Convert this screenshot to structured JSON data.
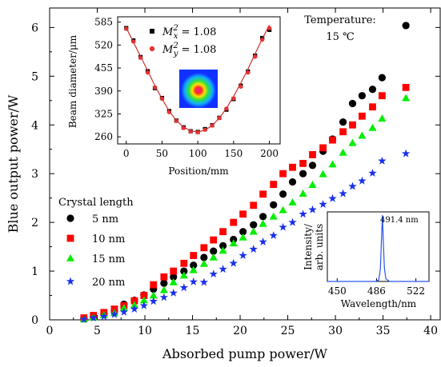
{
  "chart_data": [
    {
      "id": "main",
      "type": "scatter",
      "xlabel": "Absorbed pump power/W",
      "ylabel": "Blue output power/W",
      "xlim": [
        0,
        41
      ],
      "ylim": [
        0,
        6.4
      ],
      "xticks": [
        "0",
        "5",
        "10",
        "15",
        "20",
        "25",
        "30",
        "35",
        "40"
      ],
      "yticks": [
        "0",
        "1",
        "2",
        "3",
        "4",
        "5",
        "6"
      ],
      "legend_title": "Crystal length",
      "legend_position": "left",
      "annotation": {
        "line1": "Temperature:",
        "line2": "15 ℃"
      },
      "series": [
        {
          "name": "5 nm",
          "marker": "circle",
          "color": "#000000",
          "x": [
            3.6,
            4.6,
            5.7,
            6.8,
            7.8,
            8.9,
            9.9,
            10.9,
            12.0,
            13.0,
            14.1,
            15.1,
            16.2,
            17.2,
            18.2,
            19.3,
            20.3,
            21.4,
            22.4,
            23.5,
            24.5,
            25.5,
            26.6,
            27.6,
            28.7,
            29.7,
            30.8,
            31.8,
            32.8,
            33.9,
            34.9,
            37.4
          ],
          "y": [
            0.02,
            0.06,
            0.12,
            0.19,
            0.32,
            0.4,
            0.51,
            0.63,
            0.75,
            0.88,
            1.0,
            1.12,
            1.28,
            1.41,
            1.52,
            1.65,
            1.81,
            1.95,
            2.12,
            2.36,
            2.58,
            2.83,
            3.0,
            3.17,
            3.46,
            3.71,
            4.06,
            4.44,
            4.6,
            4.73,
            4.97,
            6.04
          ]
        },
        {
          "name": "10 nm",
          "marker": "square",
          "color": "#ff0000",
          "x": [
            3.6,
            4.6,
            5.7,
            6.8,
            7.8,
            8.9,
            9.9,
            10.9,
            12.0,
            13.0,
            14.1,
            15.1,
            16.2,
            17.2,
            18.2,
            19.3,
            20.3,
            21.4,
            22.4,
            23.5,
            24.5,
            25.5,
            26.6,
            27.6,
            28.7,
            29.7,
            30.8,
            31.8,
            32.8,
            33.9,
            34.9,
            37.4
          ],
          "y": [
            0.04,
            0.09,
            0.15,
            0.22,
            0.29,
            0.39,
            0.5,
            0.72,
            0.88,
            1.0,
            1.16,
            1.32,
            1.48,
            1.64,
            1.81,
            2.0,
            2.17,
            2.35,
            2.58,
            2.78,
            3.0,
            3.13,
            3.21,
            3.39,
            3.53,
            3.69,
            3.86,
            4.0,
            4.18,
            4.37,
            4.6,
            4.77
          ]
        },
        {
          "name": "15 nm",
          "marker": "triangle",
          "color": "#00ee00",
          "x": [
            3.6,
            4.6,
            5.7,
            6.8,
            7.8,
            8.9,
            9.9,
            10.9,
            12.0,
            13.0,
            14.1,
            15.1,
            16.2,
            17.2,
            18.2,
            19.3,
            20.3,
            21.4,
            22.4,
            23.5,
            24.5,
            25.5,
            26.6,
            27.6,
            28.7,
            29.7,
            30.8,
            31.8,
            32.8,
            33.9,
            34.9,
            37.4
          ],
          "y": [
            0.01,
            0.05,
            0.1,
            0.14,
            0.24,
            0.3,
            0.4,
            0.5,
            0.61,
            0.77,
            0.91,
            1.02,
            1.15,
            1.28,
            1.42,
            1.57,
            1.69,
            1.81,
            1.97,
            2.12,
            2.25,
            2.41,
            2.59,
            2.77,
            2.99,
            3.19,
            3.43,
            3.63,
            3.78,
            3.94,
            4.13,
            4.55
          ]
        },
        {
          "name": "20 nm",
          "marker": "star",
          "color": "#1a30ee",
          "x": [
            3.6,
            4.6,
            5.7,
            6.8,
            7.8,
            8.9,
            9.9,
            10.9,
            12.0,
            13.0,
            14.1,
            15.1,
            16.2,
            17.2,
            18.2,
            19.3,
            20.3,
            21.4,
            22.4,
            23.5,
            24.5,
            25.5,
            26.6,
            27.6,
            28.7,
            29.7,
            30.8,
            31.8,
            32.8,
            33.9,
            34.9,
            37.4
          ],
          "y": [
            0.01,
            0.04,
            0.07,
            0.11,
            0.16,
            0.22,
            0.29,
            0.38,
            0.46,
            0.55,
            0.66,
            0.78,
            0.77,
            0.94,
            1.04,
            1.16,
            1.32,
            1.45,
            1.6,
            1.73,
            1.9,
            2.0,
            2.17,
            2.26,
            2.37,
            2.49,
            2.59,
            2.74,
            2.85,
            3.01,
            3.26,
            3.41
          ]
        }
      ]
    },
    {
      "id": "inset_beam",
      "type": "scatter",
      "xlabel": "Position/mm",
      "ylabel": "Beam diameter/μm",
      "xlim": [
        -12,
        215
      ],
      "ylim": [
        240,
        600
      ],
      "xticks": [
        "0",
        "50",
        "100",
        "150",
        "200"
      ],
      "yticks": [
        "260",
        "325",
        "390",
        "455",
        "520",
        "585"
      ],
      "legend": [
        {
          "label": "M",
          "sub": "x",
          "sup": "2",
          "value": " = 1.08"
        },
        {
          "label": "M",
          "sub": "y",
          "sup": "2",
          "value": " = 1.08"
        }
      ],
      "series": [
        {
          "name": "x",
          "marker": "square",
          "color": "#000000",
          "x": [
            0,
            10,
            20,
            30,
            40,
            50,
            60,
            70,
            80,
            90,
            100,
            110,
            120,
            130,
            140,
            150,
            160,
            170,
            180,
            190,
            200
          ],
          "y": [
            568,
            533,
            486,
            446,
            398,
            370,
            333,
            306,
            287,
            276,
            274,
            282,
            293,
            314,
            337,
            367,
            405,
            445,
            490,
            540,
            563
          ]
        },
        {
          "name": "y",
          "marker": "circle",
          "color": "#ee3333",
          "x": [
            0,
            10,
            20,
            30,
            40,
            50,
            60,
            70,
            80,
            90,
            100,
            110,
            120,
            130,
            140,
            150,
            160,
            170,
            180,
            190,
            200
          ],
          "y": [
            566,
            530,
            484,
            442,
            400,
            368,
            330,
            305,
            285,
            275,
            273,
            280,
            292,
            313,
            340,
            369,
            402,
            442,
            487,
            535,
            568
          ]
        },
        {
          "name": "fit",
          "marker": "line",
          "color": "#d03030",
          "x": [
            0,
            10,
            20,
            30,
            40,
            50,
            60,
            70,
            80,
            90,
            100,
            110,
            120,
            130,
            140,
            150,
            160,
            170,
            180,
            190,
            200
          ],
          "y": [
            569,
            528,
            488,
            447,
            405,
            368,
            333,
            306,
            288,
            277,
            274,
            279,
            292,
            313,
            341,
            375,
            412,
            452,
            495,
            537,
            577
          ]
        }
      ]
    },
    {
      "id": "inset_spectrum",
      "type": "line",
      "xlabel": "Wavelength/nm",
      "ylabel_line1": "Intensity/",
      "ylabel_line2": "arb. units",
      "xlim": [
        441,
        534
      ],
      "ylim": [
        0,
        1.05
      ],
      "xticks": [
        "450",
        "486",
        "522"
      ],
      "peak_label": "491.4 nm",
      "series": [
        {
          "name": "spectrum",
          "color": "#2a55ee",
          "x": [
            441,
            485,
            488,
            489.5,
            490.5,
            491.4,
            492.3,
            493.2,
            494.5,
            498,
            534
          ],
          "y": [
            0.0,
            0.0,
            0.02,
            0.18,
            0.62,
            1.0,
            0.55,
            0.2,
            0.04,
            0.0,
            0.0
          ]
        }
      ]
    }
  ]
}
